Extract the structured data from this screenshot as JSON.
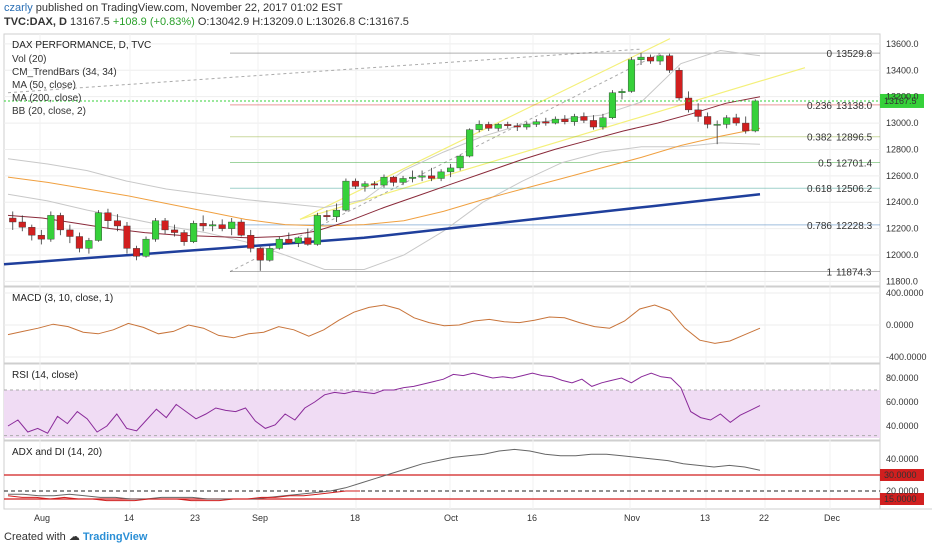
{
  "header": {
    "author": "czarly",
    "published_text": "published on TradingView.com, November 22, 2017 01:02 EST",
    "symbol": "TVC:DAX, D",
    "last": "13167.5",
    "change": "+108.9 (+0.83%)",
    "ohlc_o": "O:13042.9",
    "ohlc_h": "H:13209.0",
    "ohlc_l": "L:13026.8",
    "ohlc_c": "C:13167.5"
  },
  "footer": {
    "created_with": "Created with",
    "brand": "TradingView"
  },
  "legend": {
    "title": "DAX PERFORMANCE, D, TVC",
    "items": [
      "Vol (20)",
      "CM_TrendBars (34, 34)",
      "MA (50, close)",
      "MA (200, close)",
      "BB (20, close, 2)"
    ]
  },
  "colors": {
    "up": "#36d13a",
    "down": "#d11f1f",
    "ma200": "#1f3f9c",
    "ma50": "#8a2a3a",
    "bb_mid": "#f0a040",
    "bb_band": "#c8c8c8",
    "channel": "#f4f07a",
    "macd": "#c8743a",
    "rsi": "#8a2a9a",
    "rsi_fill": "#f0dcf4",
    "adx": "#666666",
    "red": "#d11f1f"
  },
  "chart_data": [
    {
      "type": "candlestick",
      "title": "DAX PERFORMANCE, D, TVC",
      "ylim": [
        11780,
        13660
      ],
      "y_ticks": [
        11800,
        12000,
        12200,
        12400,
        12600,
        12800,
        13000,
        13200,
        13400,
        13600
      ],
      "y_tick_labels": [
        "11800.0",
        "12000.0",
        "12200.0",
        "12400.0",
        "12600.0",
        "12800.0",
        "13000.0",
        "13200.0",
        "13400.0",
        "13600.0"
      ],
      "x_tick_labels": [
        "Aug",
        "14",
        "23",
        "Sep",
        "18",
        "Oct",
        "16",
        "Nov",
        "13",
        "22",
        "Dec"
      ],
      "last_price_label": "13167.5",
      "candles": [
        [
          12280,
          12330,
          12190,
          12250
        ],
        [
          12250,
          12300,
          12180,
          12210
        ],
        [
          12210,
          12230,
          12110,
          12150
        ],
        [
          12150,
          12190,
          12080,
          12120
        ],
        [
          12120,
          12330,
          12100,
          12300
        ],
        [
          12300,
          12320,
          12150,
          12190
        ],
        [
          12190,
          12230,
          12090,
          12140
        ],
        [
          12140,
          12170,
          12020,
          12050
        ],
        [
          12050,
          12130,
          12010,
          12110
        ],
        [
          12110,
          12340,
          12100,
          12320
        ],
        [
          12320,
          12350,
          12200,
          12260
        ],
        [
          12260,
          12310,
          12180,
          12220
        ],
        [
          12220,
          12250,
          12010,
          12050
        ],
        [
          12050,
          12070,
          11960,
          11990
        ],
        [
          11990,
          12140,
          11980,
          12120
        ],
        [
          12120,
          12280,
          12100,
          12260
        ],
        [
          12260,
          12280,
          12160,
          12190
        ],
        [
          12190,
          12230,
          12140,
          12170
        ],
        [
          12170,
          12190,
          12070,
          12100
        ],
        [
          12100,
          12260,
          12090,
          12240
        ],
        [
          12240,
          12300,
          12180,
          12220
        ],
        [
          12220,
          12260,
          12180,
          12230
        ],
        [
          12230,
          12270,
          12180,
          12200
        ],
        [
          12200,
          12280,
          12150,
          12250
        ],
        [
          12250,
          12270,
          12140,
          12150
        ],
        [
          12150,
          12190,
          12020,
          12050
        ],
        [
          12050,
          12060,
          11880,
          11960
        ],
        [
          11960,
          12070,
          11950,
          12050
        ],
        [
          12050,
          12140,
          12040,
          12120
        ],
        [
          12120,
          12170,
          12080,
          12090
        ],
        [
          12090,
          12140,
          12060,
          12130
        ],
        [
          12130,
          12200,
          12070,
          12080
        ],
        [
          12080,
          12320,
          12070,
          12300
        ],
        [
          12300,
          12340,
          12260,
          12290
        ],
        [
          12290,
          12390,
          12250,
          12340
        ],
        [
          12340,
          12580,
          12330,
          12560
        ],
        [
          12560,
          12580,
          12500,
          12520
        ],
        [
          12520,
          12560,
          12480,
          12540
        ],
        [
          12540,
          12560,
          12500,
          12530
        ],
        [
          12530,
          12610,
          12510,
          12590
        ],
        [
          12590,
          12600,
          12520,
          12550
        ],
        [
          12550,
          12600,
          12530,
          12580
        ],
        [
          12580,
          12640,
          12550,
          12590
        ],
        [
          12590,
          12640,
          12560,
          12600
        ],
        [
          12600,
          12660,
          12560,
          12580
        ],
        [
          12580,
          12650,
          12560,
          12630
        ],
        [
          12630,
          12690,
          12590,
          12660
        ],
        [
          12660,
          12760,
          12640,
          12750
        ],
        [
          12750,
          12960,
          12740,
          12950
        ],
        [
          12950,
          13020,
          12930,
          12990
        ],
        [
          12990,
          13010,
          12940,
          12960
        ],
        [
          12960,
          13000,
          12940,
          12990
        ],
        [
          12990,
          13010,
          12960,
          12980
        ],
        [
          12980,
          13000,
          12940,
          12970
        ],
        [
          12970,
          13010,
          12950,
          12990
        ],
        [
          12990,
          13030,
          12970,
          13010
        ],
        [
          13010,
          13040,
          12980,
          13000
        ],
        [
          13000,
          13050,
          12990,
          13030
        ],
        [
          13030,
          13060,
          12990,
          13010
        ],
        [
          13010,
          13070,
          12980,
          13050
        ],
        [
          13050,
          13080,
          13000,
          13020
        ],
        [
          13020,
          13060,
          12950,
          12970
        ],
        [
          12970,
          13070,
          12950,
          13040
        ],
        [
          13040,
          13250,
          13030,
          13230
        ],
        [
          13230,
          13260,
          13180,
          13240
        ],
        [
          13240,
          13500,
          13230,
          13480
        ],
        [
          13480,
          13530,
          13440,
          13500
        ],
        [
          13500,
          13520,
          13450,
          13470
        ],
        [
          13470,
          13520,
          13440,
          13510
        ],
        [
          13510,
          13526,
          13380,
          13400
        ],
        [
          13400,
          13420,
          13170,
          13190
        ],
        [
          13190,
          13240,
          13080,
          13100
        ],
        [
          13100,
          13150,
          13010,
          13050
        ],
        [
          13050,
          13080,
          12960,
          12990
        ],
        [
          12990,
          13020,
          12840,
          12990
        ],
        [
          12990,
          13060,
          12960,
          13040
        ],
        [
          13040,
          13070,
          12980,
          13000
        ],
        [
          13000,
          13050,
          12920,
          12940
        ],
        [
          12940,
          13180,
          12930,
          13167.5
        ]
      ],
      "ma200": [
        11930,
        11950,
        11970,
        11990,
        12010,
        12030,
        12050,
        12070,
        12090,
        12110,
        12130,
        12160,
        12190,
        12220,
        12250,
        12280,
        12310,
        12340,
        12370,
        12400,
        12430,
        12460
      ],
      "ma50": [
        12300,
        12280,
        12240,
        12200,
        12170,
        12150,
        12140,
        12130,
        12140,
        12180,
        12260,
        12360,
        12450,
        12540,
        12630,
        12720,
        12800,
        12870,
        12940,
        13000,
        13070,
        13150,
        13200
      ],
      "bb_mid": [
        12590,
        12550,
        12500,
        12450,
        12390,
        12330,
        12270,
        12230,
        12220,
        12230,
        12260,
        12330,
        12420,
        12500,
        12580,
        12660,
        12740,
        12830,
        12900,
        12960
      ],
      "bb_upper": [
        12730,
        12690,
        12640,
        12560,
        12500,
        12460,
        12420,
        12390,
        12360,
        12420,
        12640,
        12780,
        12900,
        12990,
        13030,
        13060,
        13160,
        13450,
        13550,
        13510
      ],
      "bb_lower": [
        12460,
        12410,
        12340,
        12280,
        12220,
        12170,
        12100,
        12000,
        11890,
        11890,
        12000,
        12180,
        12400,
        12560,
        12700,
        12780,
        12820,
        12820,
        12850,
        12840
      ],
      "fibonacci": [
        {
          "level": "0",
          "price": "13529.8",
          "color": "#555555"
        },
        {
          "level": "0.236",
          "price": "13138.0",
          "color": "#d11f1f"
        },
        {
          "level": "0.382",
          "price": "12896.5",
          "color": "#8aaa2a"
        },
        {
          "level": "0.5",
          "price": "12701.4",
          "color": "#2aa02a"
        },
        {
          "level": "0.618",
          "price": "12506.2",
          "color": "#2a9a8a"
        },
        {
          "level": "0.786",
          "price": "12228.3",
          "color": "#2a6fb5"
        },
        {
          "level": "1",
          "price": "11874.3",
          "color": "#555555"
        }
      ]
    },
    {
      "type": "line",
      "title": "MACD (3, 10, close, 1)",
      "ylim": [
        -450,
        450
      ],
      "y_tick_labels": [
        "400.0000",
        "0.0000",
        "-400.0000"
      ],
      "y_ticks": [
        400,
        0,
        -400
      ],
      "values": [
        -120,
        -80,
        -40,
        10,
        -20,
        -90,
        -110,
        -60,
        20,
        -30,
        -110,
        -80,
        0,
        -40,
        -130,
        -160,
        -110,
        -90,
        -20,
        -60,
        -140,
        -60,
        60,
        160,
        220,
        250,
        200,
        90,
        30,
        -10,
        0,
        50,
        70,
        40,
        30,
        60,
        100,
        90,
        30,
        -20,
        -40,
        50,
        200,
        250,
        180,
        -40,
        -190,
        -230,
        -200,
        -120,
        -40
      ]
    },
    {
      "type": "line",
      "title": "RSI (14, close)",
      "ylim": [
        30,
        90
      ],
      "y_ticks": [
        80,
        60,
        40
      ],
      "y_tick_labels": [
        "80.0000",
        "60.0000",
        "40.0000"
      ],
      "band": [
        30,
        70
      ],
      "values": [
        40,
        45,
        35,
        38,
        34,
        48,
        42,
        52,
        46,
        35,
        40,
        50,
        38,
        36,
        45,
        54,
        47,
        58,
        52,
        46,
        50,
        55,
        53,
        52,
        55,
        44,
        38,
        41,
        50,
        45,
        55,
        60,
        66,
        68,
        67,
        69,
        68,
        67,
        70,
        70,
        72,
        73,
        75,
        77,
        79,
        83,
        82,
        84,
        82,
        80,
        81,
        80,
        82,
        84,
        82,
        81,
        78,
        76,
        79,
        73,
        76,
        78,
        80,
        76,
        81,
        84,
        81,
        80,
        72,
        52,
        47,
        45,
        50,
        43,
        49,
        53,
        57
      ]
    },
    {
      "type": "line",
      "title": "ADX and DI (14, 20)",
      "ylim": [
        10,
        50
      ],
      "y_ticks": [
        40,
        30,
        20,
        15
      ],
      "y_tick_labels": [
        "40.0000",
        "30.0000",
        "20.0000",
        "15.0000"
      ],
      "reference_lines": [
        {
          "value": 30,
          "label": "30.0000",
          "color": "#d11f1f"
        },
        {
          "value": 15,
          "label": "15.0000",
          "color": "#d11f1f"
        }
      ],
      "adx": [
        18,
        18,
        17,
        17,
        18,
        17,
        16,
        16,
        15,
        15,
        16,
        16,
        16,
        15,
        15,
        15,
        15,
        16,
        17,
        18,
        19,
        20,
        22,
        25,
        28,
        31,
        34,
        37,
        39,
        41,
        42,
        43,
        45,
        46,
        45,
        43,
        42,
        42,
        43,
        43,
        42,
        41,
        40,
        39,
        37,
        36,
        35,
        36,
        35,
        33
      ],
      "di_plus": [
        17,
        16,
        16,
        15,
        16,
        15,
        15,
        14,
        14,
        14,
        15,
        15,
        15,
        14,
        14,
        14,
        15,
        15,
        16,
        16,
        17,
        17,
        18,
        19,
        20,
        20
      ]
    }
  ]
}
